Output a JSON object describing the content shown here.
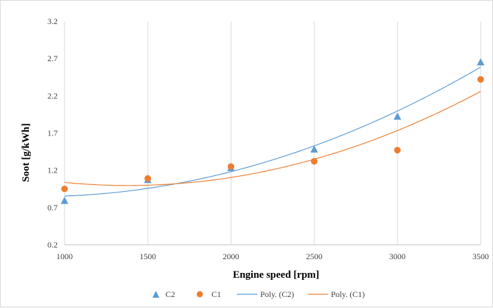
{
  "chart_data": {
    "type": "scatter",
    "title": "",
    "xlabel": "Engine speed [rpm]",
    "ylabel": "Soot [g/kWh]",
    "xlim": [
      1000,
      3500
    ],
    "ylim": [
      0.2,
      3.2
    ],
    "x_ticks": [
      "1000",
      "1500",
      "2000",
      "2500",
      "3000",
      "3500"
    ],
    "y_ticks": [
      "0.2",
      "0.7",
      "1.2",
      "1.7",
      "2.2",
      "2.7",
      "3.2"
    ],
    "grid": "vertical",
    "legend_position": "bottom",
    "series": [
      {
        "name": "C2",
        "marker": "triangle",
        "color": "#5B9BD5",
        "x": [
          1000,
          1500,
          2000,
          2500,
          3000,
          3500
        ],
        "y": [
          0.79,
          1.07,
          1.23,
          1.48,
          1.92,
          2.65
        ]
      },
      {
        "name": "C1",
        "marker": "circle",
        "color": "#ED7D31",
        "x": [
          1000,
          1500,
          2000,
          2500,
          3000,
          3500
        ],
        "y": [
          0.95,
          1.09,
          1.25,
          1.32,
          1.47,
          2.42
        ]
      }
    ],
    "trendlines": [
      {
        "name": "Poly. (C2)",
        "color": "#5B9BD5",
        "x": [
          1000,
          1500,
          2000,
          2500,
          3000,
          3500
        ],
        "y": [
          0.85,
          0.96,
          1.19,
          1.52,
          1.99,
          2.59
        ]
      },
      {
        "name": "Poly. (C1)",
        "color": "#ED7D31",
        "x": [
          1000,
          1500,
          2000,
          2500,
          3000,
          3500
        ],
        "y": [
          1.04,
          0.99,
          1.11,
          1.35,
          1.73,
          2.26
        ]
      }
    ]
  }
}
